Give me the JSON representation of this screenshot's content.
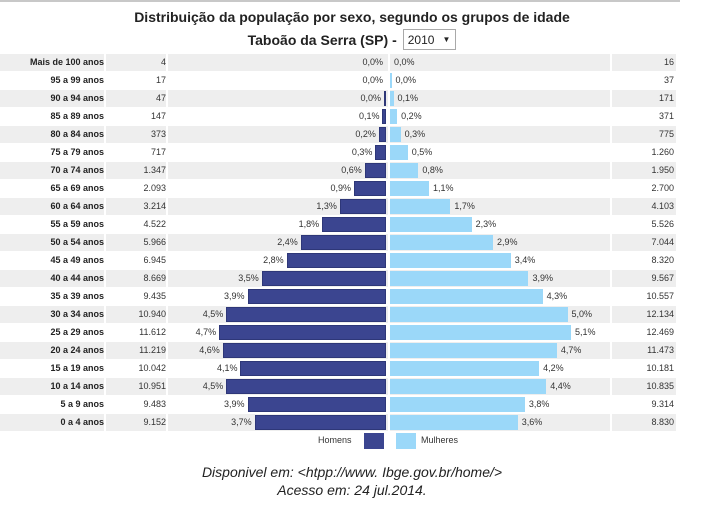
{
  "header": {
    "title": "Distribuição da população por sexo, segundo os grupos de idade",
    "subtitle_prefix": "Taboão da Serra (SP) -",
    "year_select": {
      "selected": "2010",
      "icon": "dropdown-arrow-icon"
    }
  },
  "colors": {
    "men": "#3b4590",
    "women": "#9bd8f9",
    "row_shade": "#eeeeee"
  },
  "legend": {
    "men_label": "Homens",
    "women_label": "Mulheres"
  },
  "source": {
    "line1": "Disponivel em: <htpp://www. Ibge.gov.br/home/>",
    "line2": "Acesso em: 24 jul.2014."
  },
  "chart_data": {
    "type": "bar",
    "orientation": "horizontal-pyramid",
    "title": "Distribuição da população por sexo, segundo os grupos de idade",
    "subtitle": "Taboão da Serra (SP) - 2010",
    "legend_position": "bottom",
    "categories": [
      "Mais de 100 anos",
      "95 a 99 anos",
      "90 a 94 anos",
      "85 a 89 anos",
      "80 a 84 anos",
      "75 a 79 anos",
      "70 a 74 anos",
      "65 a 69 anos",
      "60 a 64 anos",
      "55 a 59 anos",
      "50 a 54 anos",
      "45 a 49 anos",
      "40 a 44 anos",
      "35 a 39 anos",
      "30 a 34 anos",
      "25 a 29 anos",
      "20 a 24 anos",
      "15 a 19 anos",
      "10 a 14 anos",
      "5 a 9 anos",
      "0 a 4 anos"
    ],
    "series": [
      {
        "name": "Homens",
        "counts": [
          "4",
          "17",
          "47",
          "147",
          "373",
          "717",
          "1.347",
          "2.093",
          "3.214",
          "4.522",
          "5.966",
          "6.945",
          "8.669",
          "9.435",
          "10.940",
          "11.612",
          "11.219",
          "10.042",
          "10.951",
          "9.483",
          "9.152"
        ],
        "percent_labels": [
          "0,0%",
          "0,0%",
          "0,0%",
          "0,1%",
          "0,2%",
          "0,3%",
          "0,6%",
          "0,9%",
          "1,3%",
          "1,8%",
          "2,4%",
          "2,8%",
          "3,5%",
          "3,9%",
          "4,5%",
          "4,7%",
          "4,6%",
          "4,1%",
          "4,5%",
          "3,9%",
          "3,7%"
        ],
        "values": [
          0.0,
          0.0,
          0.0,
          0.1,
          0.2,
          0.3,
          0.6,
          0.9,
          1.3,
          1.8,
          2.4,
          2.8,
          3.5,
          3.9,
          4.5,
          4.7,
          4.6,
          4.1,
          4.5,
          3.9,
          3.7
        ]
      },
      {
        "name": "Mulheres",
        "counts": [
          "16",
          "37",
          "171",
          "371",
          "775",
          "1.260",
          "1.950",
          "2.700",
          "4.103",
          "5.526",
          "7.044",
          "8.320",
          "9.567",
          "10.557",
          "12.134",
          "12.469",
          "11.473",
          "10.181",
          "10.835",
          "9.314",
          "8.830"
        ],
        "percent_labels": [
          "0,0%",
          "0,0%",
          "0,1%",
          "0,2%",
          "0,3%",
          "0,5%",
          "0,8%",
          "1,1%",
          "1,7%",
          "2,3%",
          "2,9%",
          "3,4%",
          "3,9%",
          "4,3%",
          "5,0%",
          "5,1%",
          "4,7%",
          "4,2%",
          "4,4%",
          "3,8%",
          "3,6%"
        ],
        "values": [
          0.0,
          0.0,
          0.1,
          0.2,
          0.3,
          0.5,
          0.8,
          1.1,
          1.7,
          2.3,
          2.9,
          3.4,
          3.9,
          4.3,
          5.0,
          5.1,
          4.7,
          4.2,
          4.4,
          3.8,
          3.6
        ]
      }
    ],
    "xlabel": "",
    "ylabel": "",
    "grid": false
  }
}
